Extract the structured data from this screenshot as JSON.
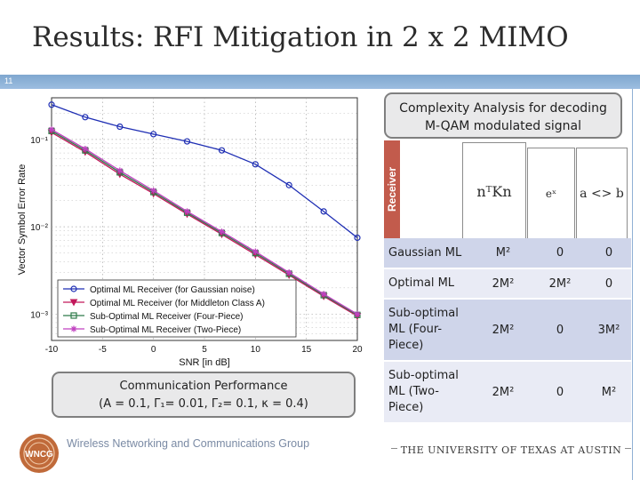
{
  "slide": {
    "title": "Results: RFI Mitigation in 2 x 2 MIMO",
    "number": "11"
  },
  "callouts": {
    "complexity_line1": "Complexity Analysis for decoding",
    "complexity_line2": "M-QAM modulated signal",
    "performance_line1": "Communication Performance",
    "performance_line2": "(A = 0.1, Γ₁= 0.01, Γ₂= 0.1, κ = 0.4)"
  },
  "complexity_table": {
    "receiver_label": "Receiver",
    "col_headers": [
      "nᵀKn",
      "eˣ",
      "a <> b"
    ],
    "rows": [
      {
        "name": "Gaussian ML",
        "c1": "M²",
        "c2": "0",
        "c3": "0"
      },
      {
        "name": "Optimal ML",
        "c1": "2M²",
        "c2": "2M²",
        "c3": "0"
      },
      {
        "name": "Sub-optimal ML (Four-Piece)",
        "c1": "2M²",
        "c2": "0",
        "c3": "3M²"
      },
      {
        "name": "Sub-optimal ML (Two-Piece)",
        "c1": "2M²",
        "c2": "0",
        "c3": "M²"
      }
    ]
  },
  "footer": {
    "logo_text": "WNCG",
    "group_name": "Wireless Networking and Communications Group",
    "university": "THE UNIVERSITY OF TEXAS AT AUSTIN"
  },
  "chart_data": {
    "type": "line",
    "xlabel": "SNR [in dB]",
    "ylabel": "Vector Symbol Error Rate",
    "xlim": [
      -10,
      20
    ],
    "ylim": [
      0.0005,
      0.3
    ],
    "log_y": true,
    "x_ticks": [
      -10,
      -5,
      0,
      5,
      10,
      15,
      20
    ],
    "x_tick_labels": [
      "-10",
      "-5",
      "0",
      "5",
      "10",
      "15",
      "20"
    ],
    "y_ticks": [
      0.001,
      0.01,
      0.1
    ],
    "y_tick_labels": [
      "10⁻³",
      "10⁻²",
      "10⁻¹"
    ],
    "grid": true,
    "legend_position": "bottom-left",
    "series": [
      {
        "name": "Optimal ML Receiver (for Gaussian noise)",
        "color": "#1f2fb4",
        "marker": "circle",
        "x": [
          -10,
          -6.7,
          -3.3,
          0,
          3.3,
          6.7,
          10,
          13.3,
          16.7,
          20
        ],
        "y": [
          0.25,
          0.18,
          0.14,
          0.115,
          0.095,
          0.075,
          0.052,
          0.03,
          0.015,
          0.0075
        ]
      },
      {
        "name": "Optimal ML Receiver (for Middleton Class A)",
        "color": "#c2185b",
        "marker": "triangle-down",
        "x": [
          -10,
          -6.7,
          -3.3,
          0,
          3.3,
          6.7,
          10,
          13.3,
          16.7,
          20
        ],
        "y": [
          0.12,
          0.072,
          0.04,
          0.024,
          0.014,
          0.0082,
          0.0048,
          0.0028,
          0.0016,
          0.00095
        ]
      },
      {
        "name": "Sub-Optimal ML Receiver (Four-Piece)",
        "color": "#2f7a4a",
        "marker": "square",
        "x": [
          -10,
          -6.7,
          -3.3,
          0,
          3.3,
          6.7,
          10,
          13.3,
          16.7,
          20
        ],
        "y": [
          0.125,
          0.075,
          0.042,
          0.025,
          0.0145,
          0.0085,
          0.005,
          0.0029,
          0.00165,
          0.00098
        ]
      },
      {
        "name": "Sub-Optimal ML Receiver (Two-Piece)",
        "color": "#c040c0",
        "marker": "star",
        "x": [
          -10,
          -6.7,
          -3.3,
          0,
          3.3,
          6.7,
          10,
          13.3,
          16.7,
          20
        ],
        "y": [
          0.13,
          0.078,
          0.044,
          0.026,
          0.015,
          0.0088,
          0.0052,
          0.003,
          0.0017,
          0.001
        ]
      }
    ]
  }
}
